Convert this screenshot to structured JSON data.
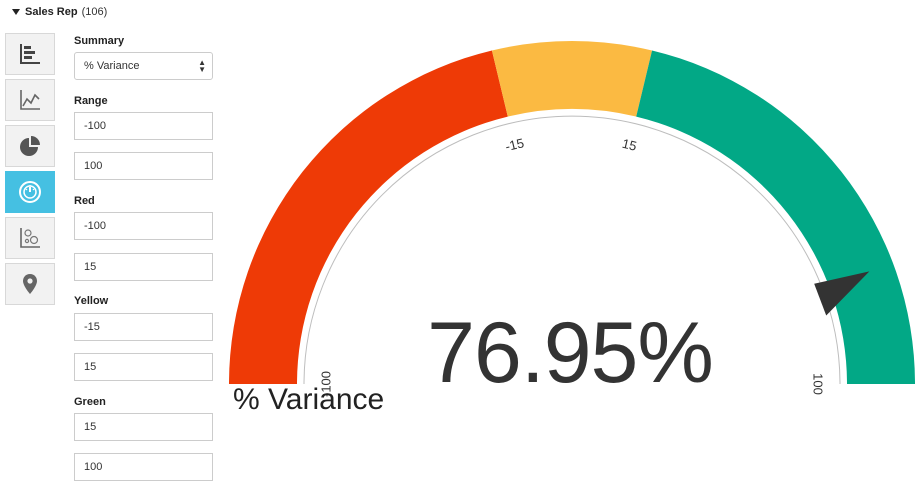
{
  "header": {
    "title": "Sales Rep",
    "count": "(106)"
  },
  "toolbar": {
    "icons": [
      {
        "name": "bar-chart-icon",
        "active": false
      },
      {
        "name": "line-chart-icon",
        "active": false
      },
      {
        "name": "pie-chart-icon",
        "active": false
      },
      {
        "name": "gauge-icon",
        "active": true
      },
      {
        "name": "scatter-chart-icon",
        "active": false
      },
      {
        "name": "map-pin-icon",
        "active": false
      }
    ]
  },
  "settings": {
    "summary_label": "Summary",
    "summary_value": "% Variance",
    "range_label": "Range",
    "range_min": "-100",
    "range_max": "100",
    "red_label": "Red",
    "red_min": "-100",
    "red_max": "15",
    "yellow_label": "Yellow",
    "yellow_min": "-15",
    "yellow_max": "15",
    "green_label": "Green",
    "green_min": "15",
    "green_max": "100"
  },
  "gauge": {
    "value_text": "76.95%",
    "value": 76.95,
    "min": -100,
    "max": 100,
    "label": "% Variance",
    "ticks": [
      "-100",
      "-15",
      "15",
      "100"
    ],
    "colors": {
      "red": "#ee3a06",
      "yellow": "#fbba42",
      "green": "#02a886",
      "needle": "#333333"
    }
  }
}
